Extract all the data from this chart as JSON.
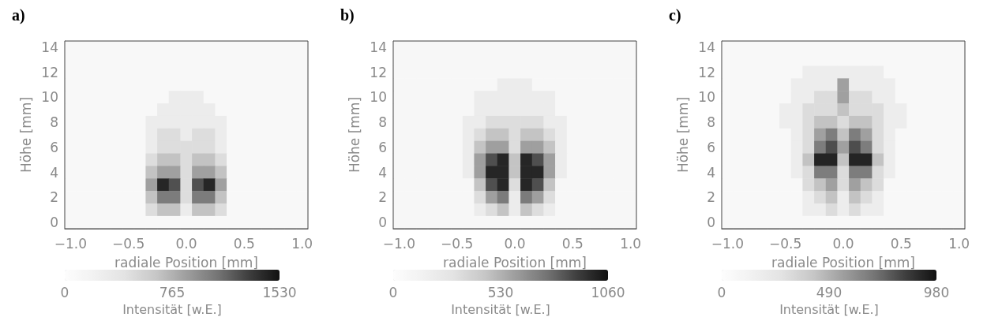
{
  "chart_data": [
    {
      "type": "heatmap",
      "title": "a)",
      "xlabel": "radiale Position [mm]",
      "ylabel": "Höhe [mm]",
      "clabel": "Intensität [w.E.]",
      "clim": [
        0,
        1530
      ],
      "cticks": [
        0,
        765,
        1530
      ],
      "categories": [
        "−1.0",
        null,
        null,
        null,
        null,
        "−0.5",
        null,
        null,
        null,
        null,
        "0.0",
        null,
        null,
        null,
        null,
        "0.5",
        null,
        null,
        null,
        null,
        "1.0"
      ],
      "y_categories": [
        "14",
        null,
        "12",
        null,
        "10",
        null,
        "8",
        null,
        "6",
        null,
        "4",
        null,
        "2",
        null,
        "0"
      ],
      "cells": [
        [
          100,
          100,
          100,
          100,
          100,
          100,
          100,
          100,
          100,
          100,
          100,
          100,
          100,
          100,
          100,
          100,
          100,
          100,
          100,
          100,
          100
        ],
        [
          100,
          100,
          100,
          100,
          100,
          100,
          100,
          100,
          100,
          100,
          100,
          100,
          100,
          100,
          100,
          100,
          100,
          100,
          100,
          100,
          100
        ],
        [
          100,
          100,
          100,
          100,
          100,
          100,
          100,
          100,
          100,
          100,
          100,
          100,
          100,
          100,
          100,
          100,
          100,
          100,
          100,
          100,
          100
        ],
        [
          100,
          100,
          100,
          100,
          100,
          100,
          100,
          100,
          100,
          100,
          100,
          100,
          100,
          100,
          100,
          100,
          100,
          100,
          100,
          100,
          100
        ],
        [
          100,
          100,
          100,
          100,
          100,
          100,
          100,
          100,
          100,
          290,
          290,
          290,
          100,
          100,
          100,
          100,
          100,
          100,
          100,
          100,
          100
        ],
        [
          100,
          100,
          100,
          100,
          100,
          100,
          100,
          100,
          290,
          290,
          290,
          290,
          290,
          100,
          100,
          100,
          100,
          100,
          100,
          100,
          100
        ],
        [
          100,
          100,
          100,
          100,
          100,
          100,
          100,
          290,
          290,
          290,
          290,
          290,
          290,
          290,
          100,
          100,
          100,
          100,
          100,
          100,
          100
        ],
        [
          100,
          100,
          100,
          100,
          100,
          100,
          100,
          290,
          480,
          480,
          290,
          480,
          480,
          290,
          100,
          100,
          100,
          100,
          100,
          100,
          100
        ],
        [
          100,
          100,
          100,
          100,
          100,
          100,
          100,
          290,
          480,
          480,
          480,
          480,
          480,
          290,
          100,
          100,
          100,
          100,
          100,
          100,
          100
        ],
        [
          100,
          100,
          100,
          100,
          100,
          100,
          100,
          480,
          670,
          670,
          480,
          670,
          670,
          480,
          100,
          100,
          100,
          100,
          100,
          100,
          100
        ],
        [
          100,
          100,
          100,
          100,
          100,
          100,
          100,
          670,
          860,
          860,
          480,
          860,
          860,
          670,
          100,
          100,
          100,
          100,
          100,
          100,
          100
        ],
        [
          100,
          100,
          100,
          100,
          100,
          100,
          100,
          860,
          1430,
          1240,
          480,
          1240,
          1430,
          860,
          100,
          100,
          100,
          100,
          100,
          100,
          100
        ],
        [
          100,
          100,
          100,
          100,
          100,
          100,
          100,
          670,
          1050,
          1050,
          480,
          1050,
          1050,
          670,
          100,
          100,
          100,
          100,
          100,
          100,
          100
        ],
        [
          100,
          100,
          100,
          100,
          100,
          100,
          100,
          480,
          670,
          670,
          290,
          670,
          670,
          480,
          100,
          100,
          100,
          100,
          100,
          100,
          100
        ],
        [
          100,
          100,
          100,
          100,
          100,
          100,
          100,
          100,
          100,
          100,
          100,
          100,
          100,
          100,
          100,
          100,
          100,
          100,
          100,
          100,
          100
        ]
      ]
    },
    {
      "type": "heatmap",
      "title": "b)",
      "xlabel": "radiale Position [mm]",
      "ylabel": "Höhe [mm]",
      "clabel": "Intensität [w.E.]",
      "clim": [
        0,
        1060
      ],
      "cticks": [
        0,
        530,
        1060
      ],
      "categories": [
        "−1.0",
        null,
        null,
        null,
        null,
        "−0.5",
        null,
        null,
        null,
        null,
        "0.0",
        null,
        null,
        null,
        null,
        "0.5",
        null,
        null,
        null,
        null,
        "1.0"
      ],
      "y_categories": [
        "14",
        null,
        "12",
        null,
        "10",
        null,
        "8",
        null,
        "6",
        null,
        "4",
        null,
        "2",
        null,
        "0"
      ],
      "cells": [
        [
          70,
          70,
          70,
          70,
          70,
          70,
          70,
          70,
          70,
          70,
          70,
          70,
          70,
          70,
          70,
          70,
          70,
          70,
          70,
          70,
          70
        ],
        [
          70,
          70,
          70,
          70,
          70,
          70,
          70,
          70,
          70,
          70,
          70,
          70,
          70,
          70,
          70,
          70,
          70,
          70,
          70,
          70,
          70
        ],
        [
          70,
          70,
          70,
          70,
          70,
          70,
          70,
          70,
          70,
          70,
          70,
          70,
          70,
          70,
          70,
          70,
          70,
          70,
          70,
          70,
          70
        ],
        [
          70,
          70,
          70,
          70,
          70,
          70,
          70,
          70,
          70,
          200,
          200,
          200,
          70,
          70,
          70,
          70,
          70,
          70,
          70,
          70,
          70
        ],
        [
          70,
          70,
          70,
          70,
          70,
          70,
          70,
          200,
          200,
          200,
          200,
          200,
          200,
          200,
          70,
          70,
          70,
          70,
          70,
          70,
          70
        ],
        [
          70,
          70,
          70,
          70,
          70,
          70,
          70,
          200,
          200,
          200,
          200,
          200,
          200,
          200,
          70,
          70,
          70,
          70,
          70,
          70,
          70
        ],
        [
          70,
          70,
          70,
          70,
          70,
          70,
          200,
          200,
          330,
          330,
          330,
          330,
          330,
          200,
          200,
          70,
          70,
          70,
          70,
          70,
          70
        ],
        [
          70,
          70,
          70,
          70,
          70,
          70,
          200,
          330,
          460,
          460,
          330,
          460,
          460,
          330,
          200,
          70,
          70,
          70,
          70,
          70,
          70
        ],
        [
          70,
          70,
          70,
          70,
          70,
          70,
          200,
          460,
          600,
          600,
          330,
          600,
          600,
          460,
          200,
          70,
          70,
          70,
          70,
          70,
          70
        ],
        [
          70,
          70,
          70,
          70,
          70,
          70,
          200,
          600,
          860,
          990,
          460,
          990,
          860,
          600,
          200,
          70,
          70,
          70,
          70,
          70,
          70
        ],
        [
          70,
          70,
          70,
          70,
          70,
          70,
          200,
          600,
          990,
          990,
          460,
          990,
          990,
          600,
          200,
          70,
          70,
          70,
          70,
          70,
          70
        ],
        [
          70,
          70,
          70,
          70,
          70,
          70,
          70,
          460,
          860,
          990,
          330,
          990,
          860,
          460,
          70,
          70,
          70,
          70,
          70,
          70,
          70
        ],
        [
          70,
          70,
          70,
          70,
          70,
          70,
          70,
          330,
          600,
          730,
          200,
          730,
          600,
          330,
          70,
          70,
          70,
          70,
          70,
          70,
          70
        ],
        [
          70,
          70,
          70,
          70,
          70,
          70,
          70,
          200,
          330,
          460,
          200,
          460,
          330,
          200,
          70,
          70,
          70,
          70,
          70,
          70,
          70
        ],
        [
          70,
          70,
          70,
          70,
          70,
          70,
          70,
          70,
          70,
          70,
          70,
          70,
          70,
          70,
          70,
          70,
          70,
          70,
          70,
          70,
          70
        ]
      ]
    },
    {
      "type": "heatmap",
      "title": "c)",
      "xlabel": "radiale Position [mm]",
      "ylabel": "Höhe [mm]",
      "clabel": "Intensität [w.E.]",
      "clim": [
        0,
        980
      ],
      "cticks": [
        0,
        490,
        980
      ],
      "categories": [
        "−1.0",
        null,
        null,
        null,
        null,
        "−0.5",
        null,
        null,
        null,
        null,
        "0.0",
        null,
        null,
        null,
        null,
        "0.5",
        null,
        null,
        null,
        null,
        "1.0"
      ],
      "y_categories": [
        "14",
        null,
        "12",
        null,
        "10",
        null,
        "8",
        null,
        "6",
        null,
        "4",
        null,
        "2",
        null,
        "0"
      ],
      "cells": [
        [
          60,
          60,
          60,
          60,
          60,
          60,
          60,
          60,
          60,
          60,
          60,
          60,
          60,
          60,
          60,
          60,
          60,
          60,
          60,
          60,
          60
        ],
        [
          60,
          60,
          60,
          60,
          60,
          60,
          60,
          60,
          60,
          60,
          60,
          60,
          60,
          60,
          60,
          60,
          60,
          60,
          60,
          60,
          60
        ],
        [
          60,
          60,
          60,
          60,
          60,
          60,
          60,
          180,
          180,
          180,
          180,
          180,
          180,
          180,
          60,
          60,
          60,
          60,
          60,
          60,
          60
        ],
        [
          60,
          60,
          60,
          60,
          60,
          60,
          180,
          180,
          180,
          180,
          550,
          180,
          180,
          180,
          180,
          60,
          60,
          60,
          60,
          60,
          60
        ],
        [
          60,
          60,
          60,
          60,
          60,
          60,
          180,
          180,
          310,
          310,
          550,
          310,
          310,
          180,
          180,
          60,
          60,
          60,
          60,
          60,
          60
        ],
        [
          60,
          60,
          60,
          60,
          60,
          180,
          180,
          310,
          310,
          310,
          430,
          310,
          310,
          310,
          180,
          180,
          60,
          60,
          60,
          60,
          60
        ],
        [
          60,
          60,
          60,
          60,
          60,
          180,
          180,
          310,
          430,
          430,
          310,
          430,
          430,
          310,
          180,
          180,
          60,
          60,
          60,
          60,
          60
        ],
        [
          60,
          60,
          60,
          60,
          60,
          60,
          180,
          310,
          550,
          670,
          430,
          670,
          550,
          310,
          180,
          60,
          60,
          60,
          60,
          60,
          60
        ],
        [
          60,
          60,
          60,
          60,
          60,
          60,
          180,
          310,
          670,
          800,
          550,
          800,
          670,
          310,
          180,
          60,
          60,
          60,
          60,
          60,
          60
        ],
        [
          60,
          60,
          60,
          60,
          60,
          60,
          180,
          430,
          920,
          920,
          430,
          920,
          920,
          430,
          180,
          60,
          60,
          60,
          60,
          60,
          60
        ],
        [
          60,
          60,
          60,
          60,
          60,
          60,
          180,
          310,
          670,
          670,
          310,
          670,
          670,
          310,
          180,
          60,
          60,
          60,
          60,
          60,
          60
        ],
        [
          60,
          60,
          60,
          60,
          60,
          60,
          60,
          310,
          430,
          550,
          310,
          550,
          430,
          310,
          60,
          60,
          60,
          60,
          60,
          60,
          60
        ],
        [
          60,
          60,
          60,
          60,
          60,
          60,
          60,
          180,
          310,
          430,
          180,
          430,
          310,
          180,
          60,
          60,
          60,
          60,
          60,
          60,
          60
        ],
        [
          60,
          60,
          60,
          60,
          60,
          60,
          60,
          180,
          180,
          310,
          180,
          310,
          180,
          180,
          60,
          60,
          60,
          60,
          60,
          60,
          60
        ],
        [
          60,
          60,
          60,
          60,
          60,
          60,
          60,
          60,
          60,
          60,
          60,
          60,
          60,
          60,
          60,
          60,
          60,
          60,
          60,
          60,
          60
        ]
      ]
    }
  ]
}
